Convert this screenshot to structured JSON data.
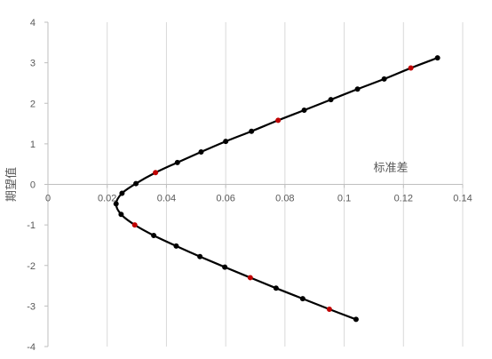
{
  "chart_data": {
    "type": "scatter",
    "xlabel": "标准差",
    "ylabel": "期望值",
    "xlim": [
      0,
      0.14
    ],
    "ylim": [
      -4,
      4
    ],
    "x_ticks": [
      "0",
      "0.02",
      "0.04",
      "0.06",
      "0.08",
      "0.1",
      "0.12",
      "0.14"
    ],
    "y_ticks": [
      "4",
      "3",
      "2",
      "1",
      "0",
      "-1",
      "-2",
      "-3",
      "-4"
    ],
    "grid": "vertical",
    "line_color": "#000000",
    "marker_color": "#000000",
    "highlight_color": "#c00000",
    "points": [
      {
        "x": 0.1315,
        "y": 3.12,
        "highlight": false
      },
      {
        "x": 0.1225,
        "y": 2.87,
        "highlight": true
      },
      {
        "x": 0.1135,
        "y": 2.6,
        "highlight": false
      },
      {
        "x": 0.1045,
        "y": 2.35,
        "highlight": false
      },
      {
        "x": 0.0955,
        "y": 2.09,
        "highlight": false
      },
      {
        "x": 0.0865,
        "y": 1.83,
        "highlight": false
      },
      {
        "x": 0.0777,
        "y": 1.58,
        "highlight": true
      },
      {
        "x": 0.0687,
        "y": 1.31,
        "highlight": false
      },
      {
        "x": 0.06,
        "y": 1.06,
        "highlight": false
      },
      {
        "x": 0.0517,
        "y": 0.8,
        "highlight": false
      },
      {
        "x": 0.0437,
        "y": 0.54,
        "highlight": false
      },
      {
        "x": 0.0363,
        "y": 0.29,
        "highlight": true
      },
      {
        "x": 0.0297,
        "y": 0.02,
        "highlight": false
      },
      {
        "x": 0.025,
        "y": -0.22,
        "highlight": false
      },
      {
        "x": 0.023,
        "y": -0.48,
        "highlight": false
      },
      {
        "x": 0.0247,
        "y": -0.74,
        "highlight": false
      },
      {
        "x": 0.0293,
        "y": -1.0,
        "highlight": true
      },
      {
        "x": 0.0357,
        "y": -1.26,
        "highlight": false
      },
      {
        "x": 0.0433,
        "y": -1.52,
        "highlight": false
      },
      {
        "x": 0.0513,
        "y": -1.78,
        "highlight": false
      },
      {
        "x": 0.0597,
        "y": -2.04,
        "highlight": false
      },
      {
        "x": 0.0683,
        "y": -2.3,
        "highlight": true
      },
      {
        "x": 0.077,
        "y": -2.56,
        "highlight": false
      },
      {
        "x": 0.086,
        "y": -2.82,
        "highlight": false
      },
      {
        "x": 0.095,
        "y": -3.08,
        "highlight": true
      },
      {
        "x": 0.104,
        "y": -3.33,
        "highlight": false
      }
    ]
  }
}
